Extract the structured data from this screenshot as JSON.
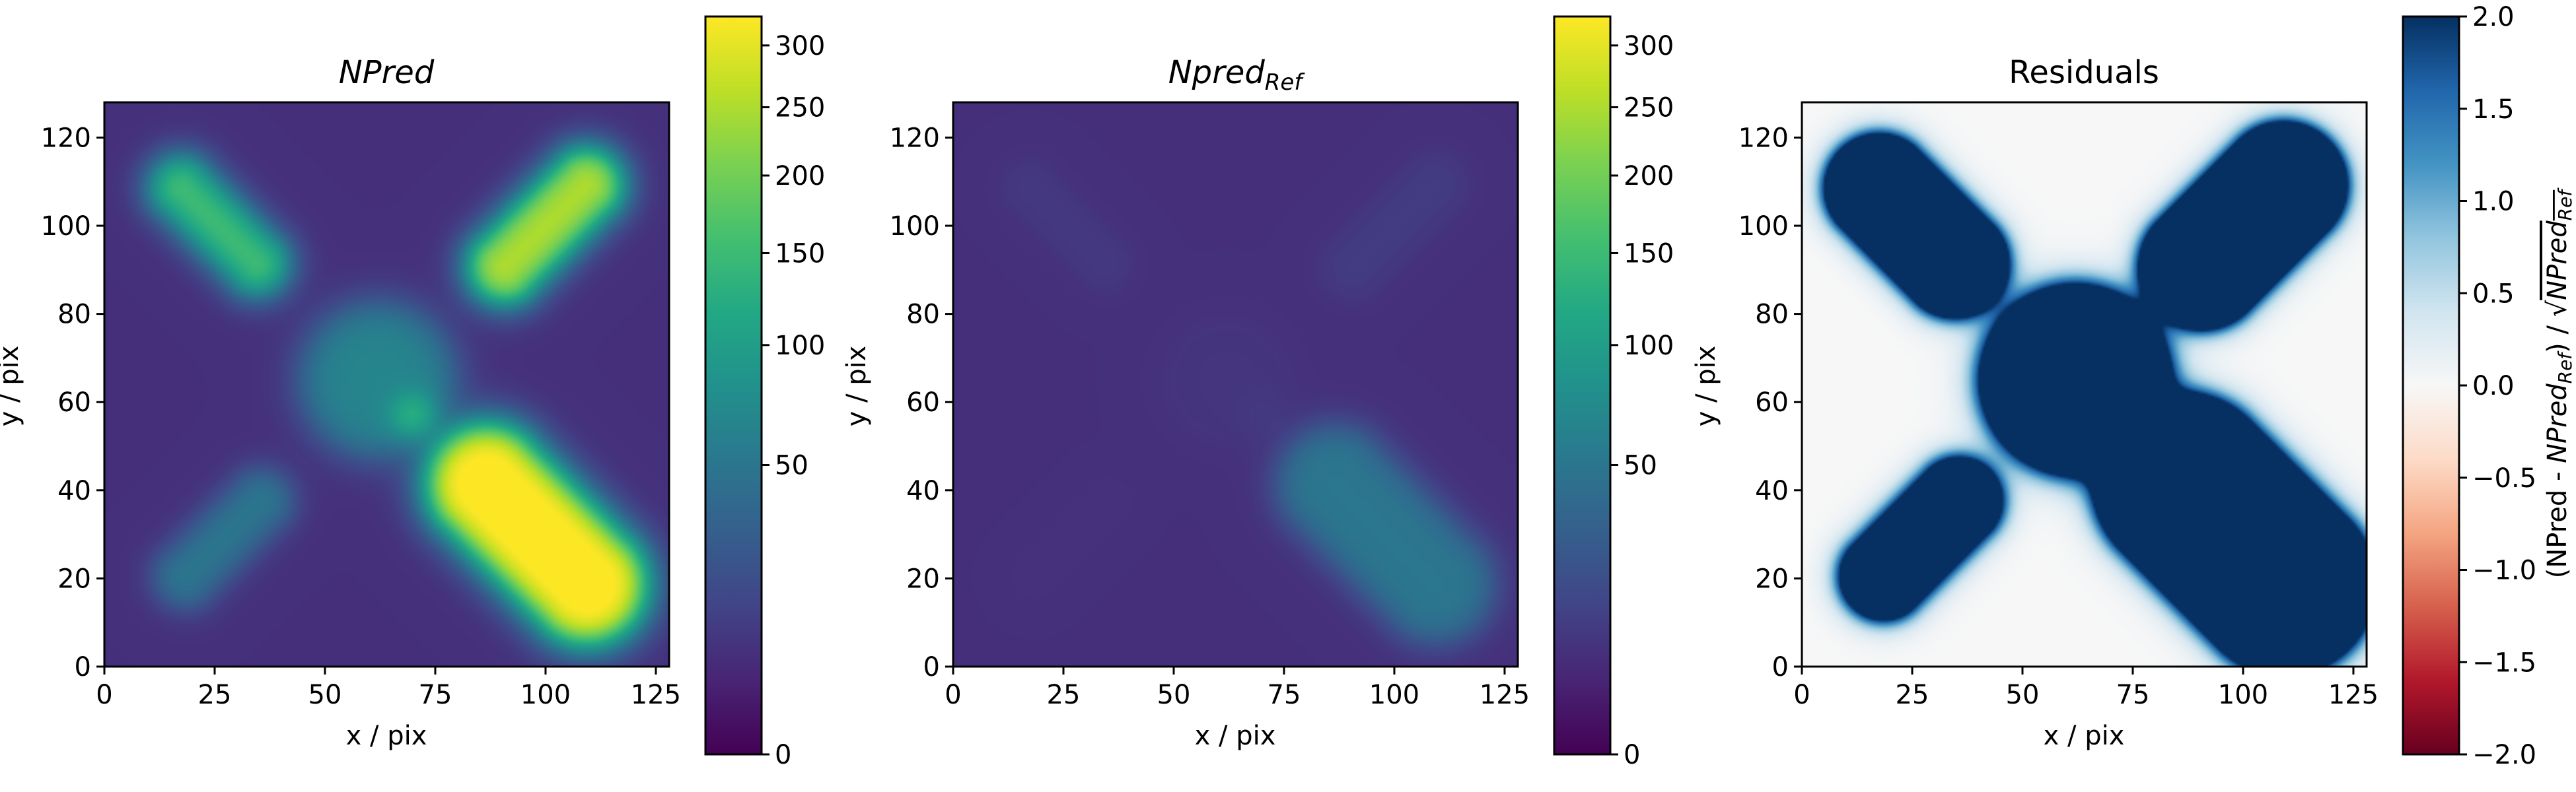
{
  "chart_data": [
    {
      "type": "heatmap",
      "title": "NPred",
      "title_style": "italic",
      "xlabel": "x / pix",
      "ylabel": "y / pix",
      "xlim": [
        0,
        128
      ],
      "ylim": [
        0,
        128
      ],
      "xticks": [
        0,
        25,
        50,
        75,
        100,
        125
      ],
      "yticks": [
        0,
        20,
        40,
        60,
        80,
        100,
        120
      ],
      "colormap": "viridis",
      "color_scale": "sqrt",
      "vmin": 0,
      "vmax": 325,
      "colorbar_ticks": [
        0,
        50,
        100,
        150,
        200,
        250,
        300
      ],
      "background": 6,
      "sources": [
        {
          "name": "top-left ellipse",
          "cx": 26,
          "cy": 100,
          "peak": 150
        },
        {
          "name": "top-right ellipse",
          "cx": 100,
          "cy": 100,
          "peak": 250
        },
        {
          "name": "center disk",
          "cx": 62,
          "cy": 65,
          "peak": 60
        },
        {
          "name": "center compact",
          "cx": 70,
          "cy": 57,
          "peak": 70
        },
        {
          "name": "bottom-left ellipse",
          "cx": 27,
          "cy": 29,
          "peak": 45
        },
        {
          "name": "bottom-right ellipse",
          "cx": 98,
          "cy": 30,
          "peak": 340
        }
      ]
    },
    {
      "type": "heatmap",
      "title": "Npred",
      "title_subscript": "Ref",
      "title_style": "italic",
      "xlabel": "x / pix",
      "ylabel": "y / pix",
      "xlim": [
        0,
        128
      ],
      "ylim": [
        0,
        128
      ],
      "xticks": [
        0,
        25,
        50,
        75,
        100,
        125
      ],
      "yticks": [
        0,
        20,
        40,
        60,
        80,
        100,
        120
      ],
      "colormap": "viridis",
      "color_scale": "sqrt",
      "vmin": 0,
      "vmax": 325,
      "colorbar_ticks": [
        0,
        50,
        100,
        150,
        200,
        250,
        300
      ],
      "background": 6,
      "sources": [
        {
          "name": "top-left ellipse",
          "cx": 26,
          "cy": 100,
          "peak": 3
        },
        {
          "name": "top-right ellipse",
          "cx": 100,
          "cy": 100,
          "peak": 4
        },
        {
          "name": "center disk",
          "cx": 62,
          "cy": 65,
          "peak": 1.5
        },
        {
          "name": "center compact",
          "cx": 70,
          "cy": 57,
          "peak": 1.5
        },
        {
          "name": "bottom-left ellipse",
          "cx": 27,
          "cy": 29,
          "peak": 0.5
        },
        {
          "name": "bottom-right ellipse",
          "cx": 98,
          "cy": 30,
          "peak": 45
        }
      ]
    },
    {
      "type": "heatmap",
      "title": "Residuals",
      "title_style": "normal",
      "xlabel": "x / pix",
      "ylabel": "y / pix",
      "xlim": [
        0,
        128
      ],
      "ylim": [
        0,
        128
      ],
      "xticks": [
        0,
        25,
        50,
        75,
        100,
        125
      ],
      "yticks": [
        0,
        20,
        40,
        60,
        80,
        100,
        120
      ],
      "colormap": "RdBu",
      "color_scale": "linear",
      "vmin": -2.0,
      "vmax": 2.0,
      "colorbar_ticks": [
        "2.0",
        "1.5",
        "1.0",
        "0.5",
        "0.0",
        "−0.5",
        "−1.0",
        "−1.5",
        "−2.0"
      ],
      "colorbar_label": "(NPred - NPred_Ref) / √NPred_Ref",
      "colorbar_label_parts": {
        "open": "(NPred - ",
        "npred": "NPred",
        "ref": "Ref",
        "mid": ") / ",
        "sqrt": "√"
      }
    }
  ]
}
